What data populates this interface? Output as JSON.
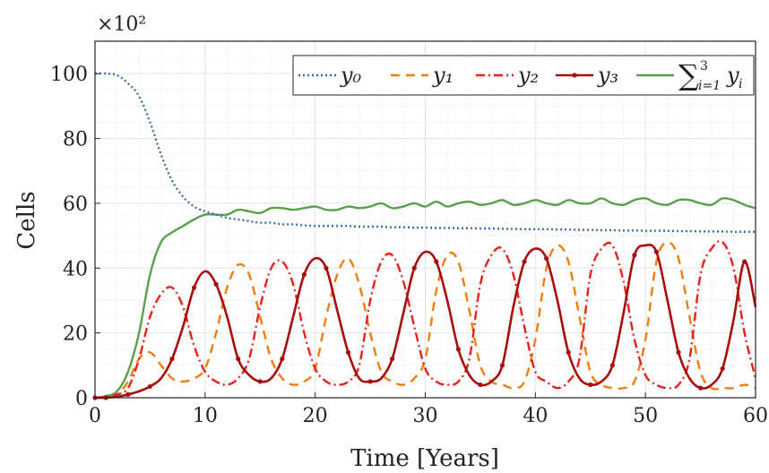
{
  "chart_data": {
    "type": "line",
    "xlabel": "Time [Years]",
    "ylabel": "Cells",
    "y_multiplier": "×10²",
    "xlim": [
      0,
      60
    ],
    "ylim": [
      0,
      110
    ],
    "xticks": [
      0,
      10,
      20,
      30,
      40,
      50,
      60
    ],
    "yticks": [
      0,
      20,
      40,
      60,
      80,
      100
    ],
    "grid": true,
    "minor_grid": true,
    "legend_placement": "top-right",
    "x": [
      0,
      1,
      2,
      3,
      4,
      5,
      6,
      7,
      8,
      9,
      10,
      11,
      12,
      13,
      14,
      15,
      16,
      17,
      18,
      19,
      20,
      21,
      22,
      23,
      24,
      25,
      26,
      27,
      28,
      29,
      30,
      31,
      32,
      33,
      34,
      35,
      36,
      37,
      38,
      39,
      40,
      41,
      42,
      43,
      44,
      45,
      46,
      47,
      48,
      49,
      50,
      51,
      52,
      53,
      54,
      55,
      56,
      57,
      58,
      59,
      60
    ],
    "series": [
      {
        "name": "y₀",
        "color": "#3a6fa8",
        "style": "dotted",
        "values": [
          100,
          100,
          99.5,
          97,
          93,
          85,
          75,
          67,
          62,
          59,
          57.5,
          56.5,
          55.5,
          55,
          54.5,
          54,
          54,
          53.5,
          53.5,
          53.2,
          53,
          53,
          53,
          53,
          52.8,
          52.8,
          52.8,
          52.6,
          52.6,
          52.5,
          52.5,
          52.4,
          52.4,
          52.3,
          52.3,
          52.2,
          52.2,
          52.1,
          52.1,
          52,
          52,
          52,
          51.9,
          51.9,
          51.8,
          51.8,
          51.7,
          51.7,
          51.6,
          51.6,
          51.5,
          51.5,
          51.5,
          51.4,
          51.4,
          51.3,
          51.3,
          51.3,
          51.2,
          51.2,
          51.2
        ]
      },
      {
        "name": "y₁",
        "color": "#f07d0e",
        "style": "dashed",
        "values": [
          0,
          0.2,
          1,
          5,
          12,
          14,
          10,
          6,
          5,
          6,
          9,
          20,
          34,
          41,
          38,
          25,
          12,
          6,
          4,
          5,
          9,
          25,
          38,
          43,
          35,
          20,
          8,
          5,
          4,
          6,
          12,
          33,
          44,
          42,
          27,
          10,
          5,
          4,
          3,
          5,
          18,
          40,
          47,
          42,
          25,
          8,
          4,
          3,
          3,
          5,
          18,
          42,
          48,
          43,
          25,
          8,
          3,
          3,
          3,
          4,
          3
        ]
      },
      {
        "name": "y₂",
        "color": "#e8211c",
        "style": "dashdot",
        "values": [
          0,
          0.2,
          1,
          3,
          12,
          25,
          32,
          34,
          28,
          16,
          8,
          5,
          4,
          6,
          12,
          28,
          40,
          42,
          35,
          20,
          9,
          5,
          4,
          5,
          10,
          30,
          42,
          44,
          36,
          22,
          9,
          5,
          4,
          5,
          12,
          35,
          44,
          46,
          38,
          22,
          8,
          5,
          3,
          5,
          12,
          38,
          46,
          47,
          36,
          18,
          7,
          4,
          3,
          4,
          12,
          38,
          46,
          48,
          40,
          20,
          6
        ]
      },
      {
        "name": "y₃",
        "color": "#a80c0c",
        "style": "solid-markers",
        "values": [
          0,
          0,
          0.3,
          1,
          2,
          3.5,
          6,
          12,
          22,
          34,
          39,
          35,
          25,
          12,
          7,
          5,
          6,
          12,
          25,
          38,
          43,
          40,
          27,
          14,
          6,
          5,
          6,
          12,
          26,
          40,
          45,
          42,
          30,
          15,
          7,
          4,
          5,
          10,
          28,
          42,
          46,
          43,
          30,
          14,
          6,
          4,
          5,
          10,
          26,
          44,
          47,
          45,
          30,
          14,
          6,
          3,
          4,
          9,
          24,
          42,
          28
        ]
      },
      {
        "name": "∑ y_i",
        "color": "#5b9e4e",
        "style": "solid",
        "values": [
          0,
          0.5,
          2,
          8,
          20,
          38,
          48,
          51,
          53,
          55,
          56.5,
          56.5,
          56.5,
          58,
          57.5,
          57,
          58.5,
          58.5,
          58,
          58.5,
          59,
          58,
          58,
          59,
          58.5,
          59,
          60,
          58.5,
          59,
          60,
          59,
          60.5,
          59,
          60,
          60.5,
          59.5,
          60,
          61,
          59.5,
          60,
          61,
          60,
          59.5,
          61,
          60,
          60,
          61.5,
          60,
          59.5,
          61,
          61.5,
          60,
          59.5,
          61,
          61,
          60,
          59.5,
          61.5,
          61,
          59.5,
          58.5
        ]
      }
    ],
    "legend_entries": [
      "y₀",
      "y₁",
      "y₂",
      "y₃",
      "∑ y_i"
    ]
  },
  "legend_sum": {
    "sigma": "∑",
    "upper": "3",
    "lower": "i=1",
    "term": "y",
    "term_sub": "i"
  }
}
